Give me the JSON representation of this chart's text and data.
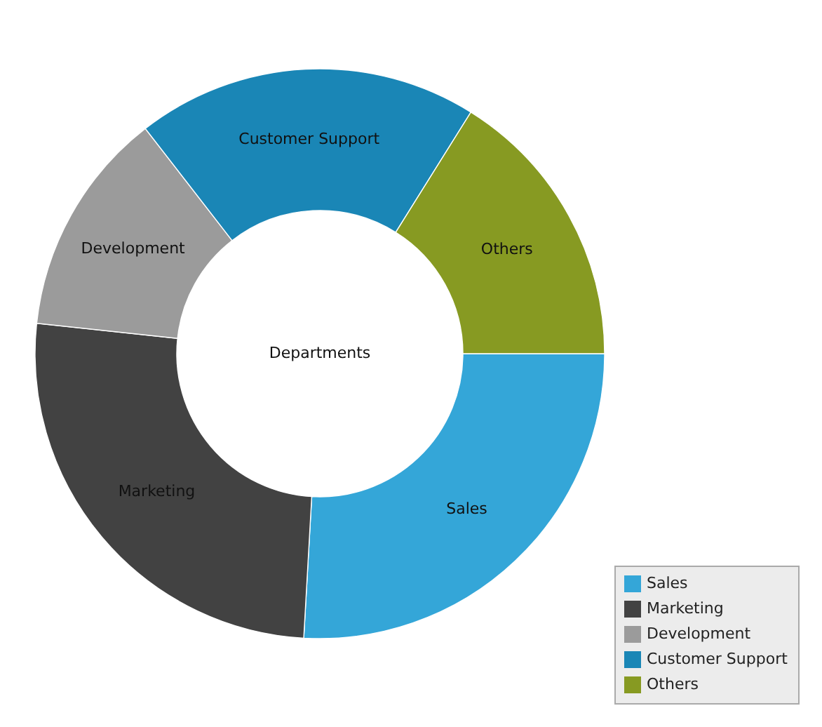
{
  "chart_data": {
    "type": "donut",
    "title": "Departments",
    "categories": [
      "Sales",
      "Marketing",
      "Development",
      "Customer Support",
      "Others"
    ],
    "values": [
      25.9,
      25.8,
      12.8,
      19.4,
      16.1
    ],
    "colors": [
      "#34a6d8",
      "#424242",
      "#9b9b9b",
      "#1a86b6",
      "#879a22"
    ],
    "legend": "bottom right"
  }
}
